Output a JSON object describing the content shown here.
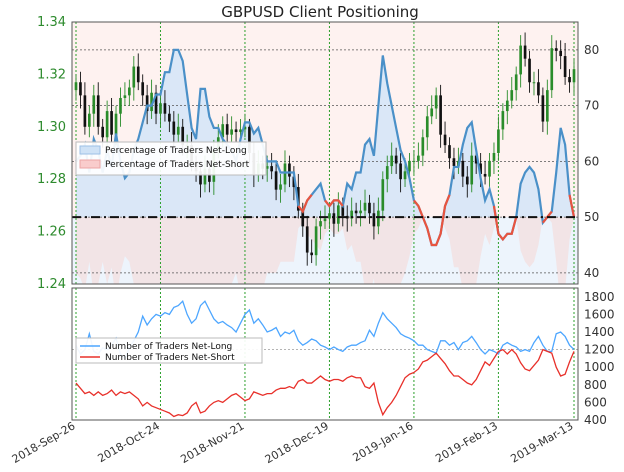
{
  "chart_data": [
    {
      "type": "line",
      "title": "GBPUSD Client Positioning",
      "x_type": "date",
      "x_ticks": [
        "2018-Sep-26",
        "2018-Oct-24",
        "2018-Nov-21",
        "2018-Dec-19",
        "2019-Jan-16",
        "2019-Feb-13",
        "2019-Mar-13"
      ],
      "price_axis": {
        "ylim": [
          1.24,
          1.34
        ],
        "ticks": [
          "1.24",
          "1.26",
          "1.28",
          "1.30",
          "1.32",
          "1.34"
        ],
        "color": "#2e8b2e"
      },
      "percent_axis": {
        "ylim": [
          38,
          85
        ],
        "ticks": [
          "40",
          "50",
          "60",
          "70",
          "80"
        ],
        "reference_line": 50
      },
      "price_ohlc_close": [
        1.317,
        1.312,
        1.3,
        1.305,
        1.312,
        1.3,
        1.296,
        1.306,
        1.297,
        1.305,
        1.311,
        1.312,
        1.315,
        1.323,
        1.317,
        1.312,
        1.306,
        1.313,
        1.305,
        1.309,
        1.305,
        1.302,
        1.297,
        1.3,
        1.293,
        1.293,
        1.286,
        1.283,
        1.278,
        1.284,
        1.279,
        1.291,
        1.296,
        1.301,
        1.297,
        1.299,
        1.298,
        1.299,
        1.3,
        1.29,
        1.282,
        1.286,
        1.284,
        1.285,
        1.283,
        1.276,
        1.278,
        1.286,
        1.281,
        1.277,
        1.268,
        1.262,
        1.252,
        1.251,
        1.262,
        1.264,
        1.265,
        1.267,
        1.263,
        1.27,
        1.266,
        1.265,
        1.268,
        1.267,
        1.268,
        1.271,
        1.267,
        1.262,
        1.268,
        1.28,
        1.285,
        1.289,
        1.286,
        1.28,
        1.283,
        1.287,
        1.287,
        1.289,
        1.296,
        1.304,
        1.307,
        1.312,
        1.297,
        1.293,
        1.288,
        1.285,
        1.287,
        1.281,
        1.278,
        1.289,
        1.286,
        1.282,
        1.281,
        1.287,
        1.29,
        1.299,
        1.306,
        1.31,
        1.314,
        1.32,
        1.331,
        1.326,
        1.317,
        1.317,
        1.312,
        1.302,
        1.314,
        1.33,
        1.329,
        1.327,
        1.319,
        1.317,
        1.322
      ],
      "series": [
        {
          "name": "Percentage of Traders Net-Long",
          "color": "#4a90c8",
          "values": [
            60,
            61,
            63,
            58,
            64,
            62,
            58,
            62,
            59,
            65,
            60,
            57,
            58,
            62,
            64,
            67,
            70,
            70,
            72,
            72,
            76,
            76,
            80,
            80,
            78,
            72,
            66,
            64,
            73,
            73,
            68,
            66,
            66,
            64,
            63,
            62,
            60,
            64,
            67,
            67,
            65,
            66,
            63,
            60,
            60,
            60,
            58,
            58,
            58,
            58,
            52,
            51,
            53,
            54,
            55,
            56,
            53,
            52,
            53,
            53,
            52,
            56,
            55,
            58,
            58,
            63,
            64,
            61,
            70,
            79,
            74,
            70,
            66,
            62,
            60,
            57,
            53,
            52,
            50,
            48,
            45,
            45,
            47,
            52,
            54,
            59,
            59,
            63,
            66,
            67,
            62,
            57,
            53,
            55,
            52,
            47,
            46,
            47,
            47,
            50,
            56,
            58,
            59,
            58,
            55,
            49,
            50,
            51,
            58,
            66,
            63,
            54,
            50
          ]
        },
        {
          "name": "Percentage of Traders Net-Short",
          "color": "#e8543f",
          "values": [
            40,
            39,
            37,
            42,
            36,
            38,
            42,
            38,
            41,
            35,
            40,
            43,
            42,
            38,
            36,
            33,
            30,
            30,
            28,
            28,
            24,
            24,
            20,
            20,
            22,
            28,
            34,
            36,
            27,
            27,
            32,
            34,
            34,
            36,
            37,
            38,
            40,
            36,
            33,
            33,
            35,
            34,
            37,
            40,
            40,
            40,
            42,
            42,
            42,
            42,
            48,
            49,
            47,
            46,
            45,
            44,
            47,
            48,
            47,
            47,
            48,
            44,
            45,
            42,
            42,
            37,
            36,
            39,
            30,
            21,
            26,
            30,
            34,
            38,
            40,
            43,
            47,
            48,
            50,
            52,
            55,
            55,
            53,
            48,
            46,
            41,
            41,
            37,
            34,
            33,
            38,
            43,
            47,
            45,
            48,
            53,
            54,
            53,
            53,
            50,
            44,
            42,
            41,
            42,
            45,
            51,
            50,
            49,
            42,
            34,
            37,
            46,
            50
          ]
        }
      ],
      "legend": "upper-left"
    },
    {
      "type": "line",
      "ylim": [
        400,
        1900
      ],
      "y_ticks": [
        "400",
        "600",
        "800",
        "1000",
        "1200",
        "1400",
        "1600",
        "1800"
      ],
      "series": [
        {
          "name": "Number of Traders Net-Long",
          "color": "#4da6ff",
          "values": [
            1250,
            1150,
            1200,
            1380,
            1180,
            1150,
            1220,
            1200,
            1250,
            1330,
            1150,
            1100,
            1220,
            1300,
            1400,
            1580,
            1480,
            1550,
            1600,
            1580,
            1620,
            1600,
            1680,
            1700,
            1750,
            1600,
            1500,
            1550,
            1700,
            1750,
            1650,
            1550,
            1500,
            1520,
            1480,
            1450,
            1400,
            1500,
            1600,
            1650,
            1500,
            1550,
            1480,
            1400,
            1420,
            1450,
            1350,
            1400,
            1380,
            1420,
            1300,
            1250,
            1280,
            1320,
            1300,
            1250,
            1230,
            1200,
            1230,
            1200,
            1180,
            1230,
            1250,
            1250,
            1280,
            1300,
            1420,
            1350,
            1500,
            1620,
            1550,
            1500,
            1450,
            1380,
            1350,
            1330,
            1300,
            1250,
            1250,
            1200,
            1180,
            1160,
            1300,
            1300,
            1250,
            1280,
            1200,
            1280,
            1300,
            1350,
            1280,
            1200,
            1150,
            1200,
            1180,
            1150,
            1250,
            1280,
            1250,
            1230,
            1180,
            1200,
            1180,
            1280,
            1350,
            1250,
            1180,
            1180,
            1380,
            1400,
            1350,
            1250,
            1200
          ]
        },
        {
          "name": "Number of Traders Net-Short",
          "color": "#e8302a",
          "values": [
            820,
            760,
            700,
            720,
            680,
            720,
            680,
            700,
            740,
            680,
            720,
            700,
            720,
            680,
            640,
            560,
            600,
            560,
            540,
            520,
            500,
            480,
            440,
            460,
            450,
            480,
            560,
            600,
            480,
            500,
            560,
            600,
            620,
            600,
            640,
            680,
            700,
            660,
            620,
            640,
            720,
            700,
            680,
            700,
            700,
            740,
            760,
            760,
            780,
            760,
            840,
            860,
            820,
            820,
            860,
            900,
            860,
            840,
            860,
            860,
            840,
            880,
            900,
            880,
            880,
            780,
            760,
            820,
            600,
            460,
            540,
            600,
            680,
            780,
            880,
            920,
            940,
            980,
            1060,
            1080,
            1120,
            1160,
            1100,
            1040,
            960,
            900,
            900,
            860,
            820,
            800,
            860,
            960,
            1060,
            1020,
            1100,
            1180,
            1200,
            1150,
            1200,
            1150,
            1050,
            980,
            960,
            1020,
            1080,
            1200,
            1180,
            1160,
            1000,
            900,
            920,
            1060,
            1180
          ]
        }
      ],
      "legend": "upper-left"
    }
  ]
}
